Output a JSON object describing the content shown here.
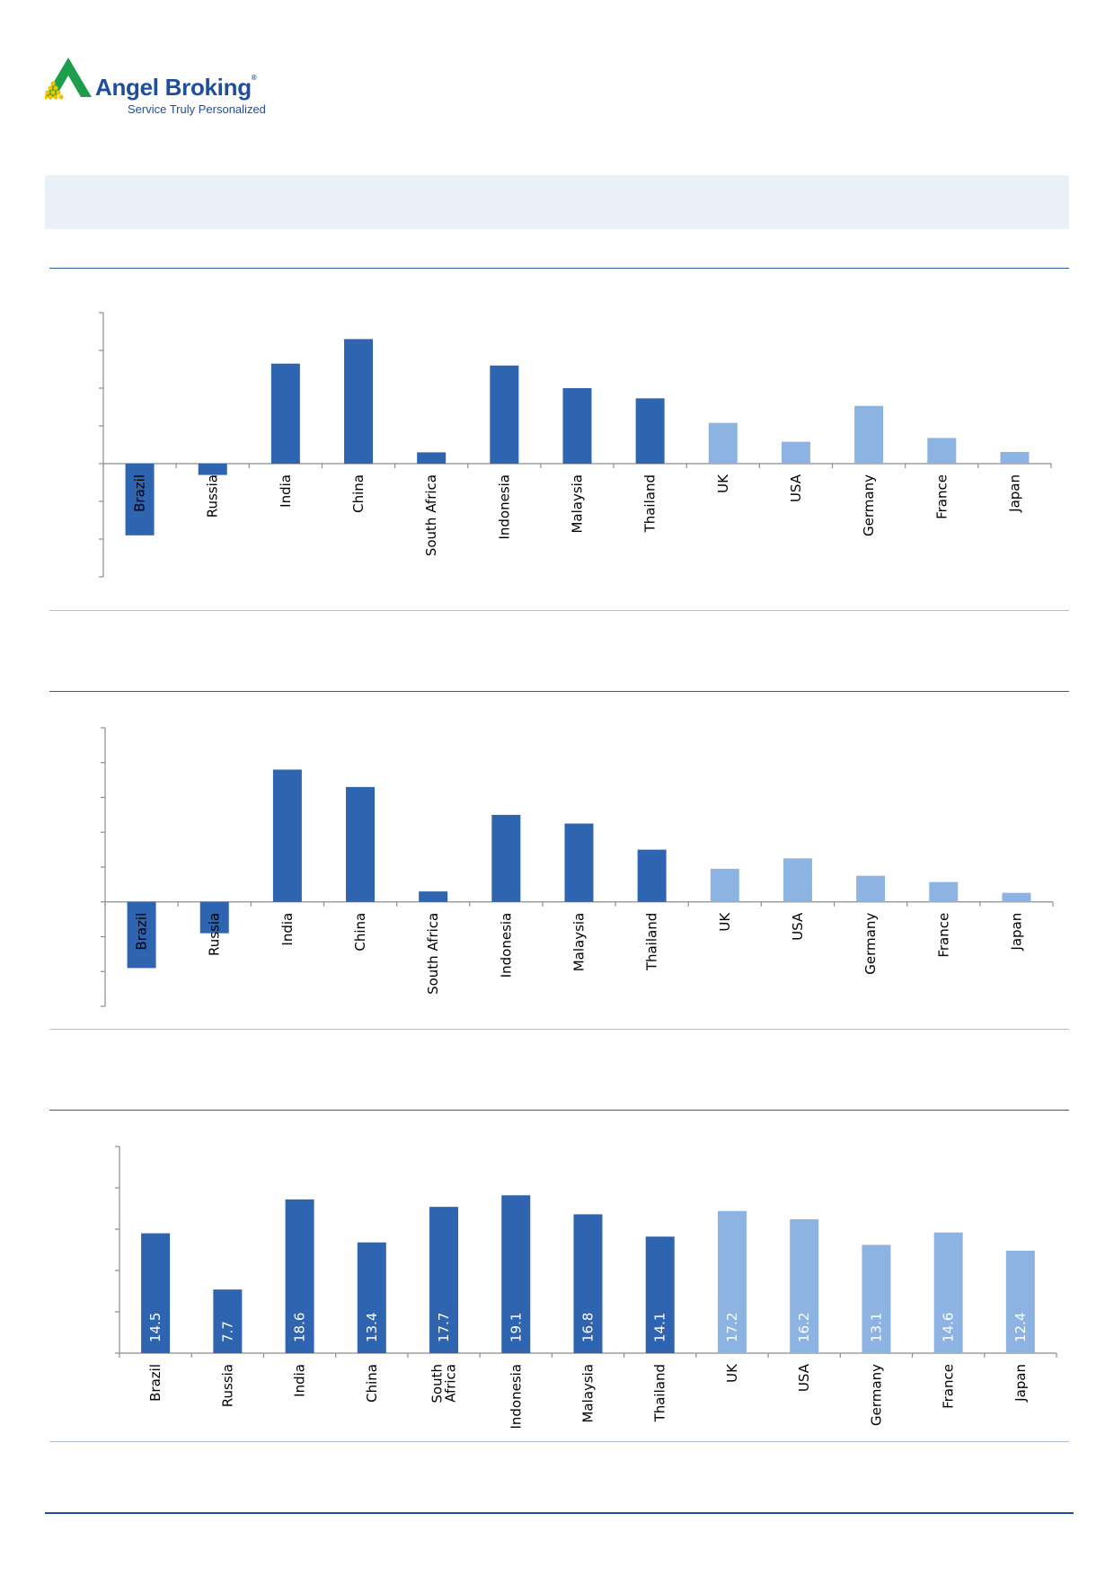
{
  "brand": {
    "name": "Angel Broking",
    "registered_mark": "®",
    "tagline": "Service Truly Personalized"
  },
  "colors": {
    "emerging": "#2e64b0",
    "developed": "#8db3e2",
    "axis": "#8c8c8c",
    "rule": "#2e5d9e"
  },
  "chart_data": [
    {
      "type": "bar",
      "categories": [
        "Brazil",
        "Russia",
        "India",
        "China",
        "South Africa",
        "Indonesia",
        "Malaysia",
        "Thailand",
        "UK",
        "USA",
        "Germany",
        "France",
        "Japan"
      ],
      "groups": [
        "emerging",
        "emerging",
        "emerging",
        "emerging",
        "emerging",
        "emerging",
        "emerging",
        "emerging",
        "developed",
        "developed",
        "developed",
        "developed",
        "developed"
      ],
      "values": [
        -19,
        -3,
        26.5,
        33,
        3,
        26,
        20,
        17.3,
        10.8,
        5.8,
        15.3,
        6.8,
        3.1
      ],
      "ylim": [
        -30,
        40
      ],
      "ticks": 7,
      "label_position": "below-axis",
      "title": "",
      "xlabel": "",
      "ylabel": ""
    },
    {
      "type": "bar",
      "categories": [
        "Brazil",
        "Russia",
        "India",
        "China",
        "South Africa",
        "Indonesia",
        "Malaysia",
        "Thailand",
        "UK",
        "USA",
        "Germany",
        "France",
        "Japan"
      ],
      "groups": [
        "emerging",
        "emerging",
        "emerging",
        "emerging",
        "emerging",
        "emerging",
        "emerging",
        "emerging",
        "developed",
        "developed",
        "developed",
        "developed",
        "developed"
      ],
      "values": [
        -19,
        -9,
        38,
        33,
        3,
        25,
        22.5,
        15,
        9.5,
        12.5,
        7.5,
        5.7,
        2.6
      ],
      "ylim": [
        -30,
        50
      ],
      "ticks": 8,
      "label_position": "below-axis",
      "title": "",
      "xlabel": "",
      "ylabel": ""
    },
    {
      "type": "bar",
      "categories": [
        "Brazil",
        "Russia",
        "India",
        "China",
        "South Africa",
        "Indonesia",
        "Malaysia",
        "Thailand",
        "UK",
        "USA",
        "Germany",
        "France",
        "Japan"
      ],
      "category_lines": [
        [
          "Brazil"
        ],
        [
          "Russia"
        ],
        [
          "India"
        ],
        [
          "China"
        ],
        [
          "South",
          "Africa"
        ],
        [
          "Indonesia"
        ],
        [
          "Malaysia"
        ],
        [
          "Thailand"
        ],
        [
          "UK"
        ],
        [
          "USA"
        ],
        [
          "Germany"
        ],
        [
          "France"
        ],
        [
          "Japan"
        ]
      ],
      "groups": [
        "emerging",
        "emerging",
        "emerging",
        "emerging",
        "emerging",
        "emerging",
        "emerging",
        "emerging",
        "developed",
        "developed",
        "developed",
        "developed",
        "developed"
      ],
      "values": [
        14.5,
        7.7,
        18.6,
        13.4,
        17.7,
        19.1,
        16.8,
        14.1,
        17.2,
        16.2,
        13.1,
        14.6,
        12.4
      ],
      "data_labels": [
        "14.5",
        "7.7",
        "18.6",
        "13.4",
        "17.7",
        "19.1",
        "16.8",
        "14.1",
        "17.2",
        "16.2",
        "13.1",
        "14.6",
        "12.4"
      ],
      "ylim": [
        0,
        25
      ],
      "ticks": 5,
      "label_position": "below-axis",
      "title": "",
      "xlabel": "",
      "ylabel": ""
    }
  ]
}
